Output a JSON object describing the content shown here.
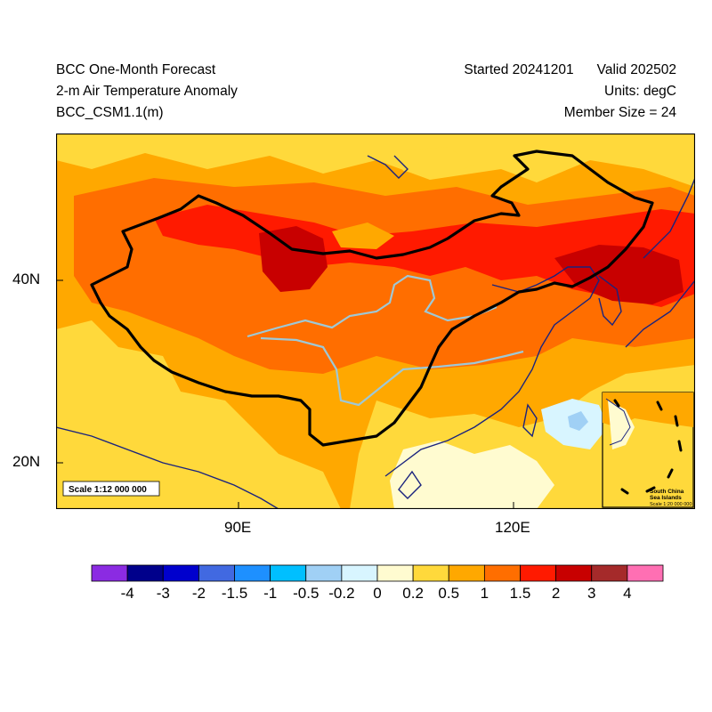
{
  "header": {
    "title": "BCC One-Month Forecast",
    "variable": "2-m Air Temperature Anomaly",
    "model": "BCC_CSM1.1(m)",
    "started": "Started 20241201",
    "valid": "Valid 202502",
    "units": "Units: degC",
    "member_size": "Member Size = 24"
  },
  "map": {
    "lat_labels": [
      "40N",
      "20N"
    ],
    "lon_labels": [
      "90E",
      "120E"
    ],
    "scale_note": "Scale 1:12 000 000",
    "inset": {
      "title_line1": "South China",
      "title_line2": "Sea Islands",
      "scale": "Scale 1:20 000 000"
    }
  },
  "colorbar": {
    "labels": [
      "-4",
      "-3",
      "-2",
      "-1.5",
      "-1",
      "-0.5",
      "-0.2",
      "0",
      "0.2",
      "0.5",
      "1",
      "1.5",
      "2",
      "3",
      "4"
    ],
    "colors": [
      "#8b2be2",
      "#00008b",
      "#0000cd",
      "#4169e1",
      "#1e90ff",
      "#00bfff",
      "#a0d0f5",
      "#d8f5ff",
      "#fffbd0",
      "#ffd93b",
      "#ffa800",
      "#ff6e00",
      "#ff1a00",
      "#c80000",
      "#a52a2a",
      "#ff6fb3"
    ]
  },
  "colors": {
    "china_border": "#000000",
    "coastline": "#1a237e",
    "river": "#9ec8d6"
  }
}
